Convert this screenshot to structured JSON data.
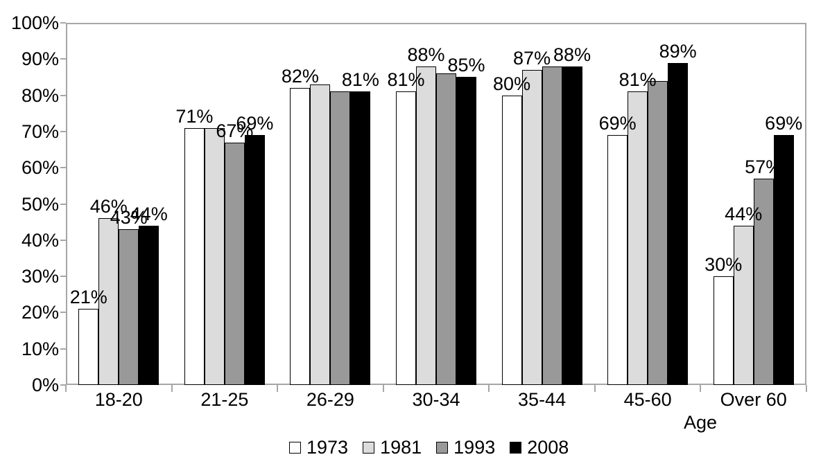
{
  "chart_data": {
    "type": "bar",
    "title": "",
    "xlabel": "Age",
    "ylabel": "",
    "ylim": [
      0,
      100
    ],
    "grid": false,
    "legend_position": "bottom",
    "y_ticks": [
      "0%",
      "10%",
      "20%",
      "30%",
      "40%",
      "50%",
      "60%",
      "70%",
      "80%",
      "90%",
      "100%"
    ],
    "categories": [
      "18-20",
      "21-25",
      "26-29",
      "30-34",
      "35-44",
      "45-60",
      "Over 60"
    ],
    "series": [
      {
        "name": "1973",
        "color": "#ffffff",
        "values": [
          21,
          71,
          82,
          81,
          80,
          69,
          30
        ],
        "labels": [
          "21%",
          "71%",
          "82%",
          "81%",
          "80%",
          "69%",
          "30%"
        ]
      },
      {
        "name": "1981",
        "color": "#dcdcdc",
        "values": [
          46,
          71,
          83,
          88,
          87,
          81,
          44
        ],
        "labels": [
          "46%",
          "",
          "",
          "88%",
          "87%",
          "81%",
          "44%"
        ]
      },
      {
        "name": "1993",
        "color": "#999999",
        "values": [
          43,
          67,
          81,
          86,
          88,
          84,
          57
        ],
        "labels": [
          "43%",
          "67%",
          "",
          "",
          "",
          "",
          "57%"
        ]
      },
      {
        "name": "2008",
        "color": "#000000",
        "values": [
          44,
          69,
          81,
          85,
          88,
          89,
          69
        ],
        "labels": [
          "44%",
          "69%",
          "81%",
          "85%",
          "88%",
          "89%",
          "69%"
        ]
      }
    ]
  },
  "style": {
    "axis_color": "#a6a6a6",
    "bar_border_color": "#000000",
    "text_color": "#000000",
    "background": "#ffffff"
  }
}
